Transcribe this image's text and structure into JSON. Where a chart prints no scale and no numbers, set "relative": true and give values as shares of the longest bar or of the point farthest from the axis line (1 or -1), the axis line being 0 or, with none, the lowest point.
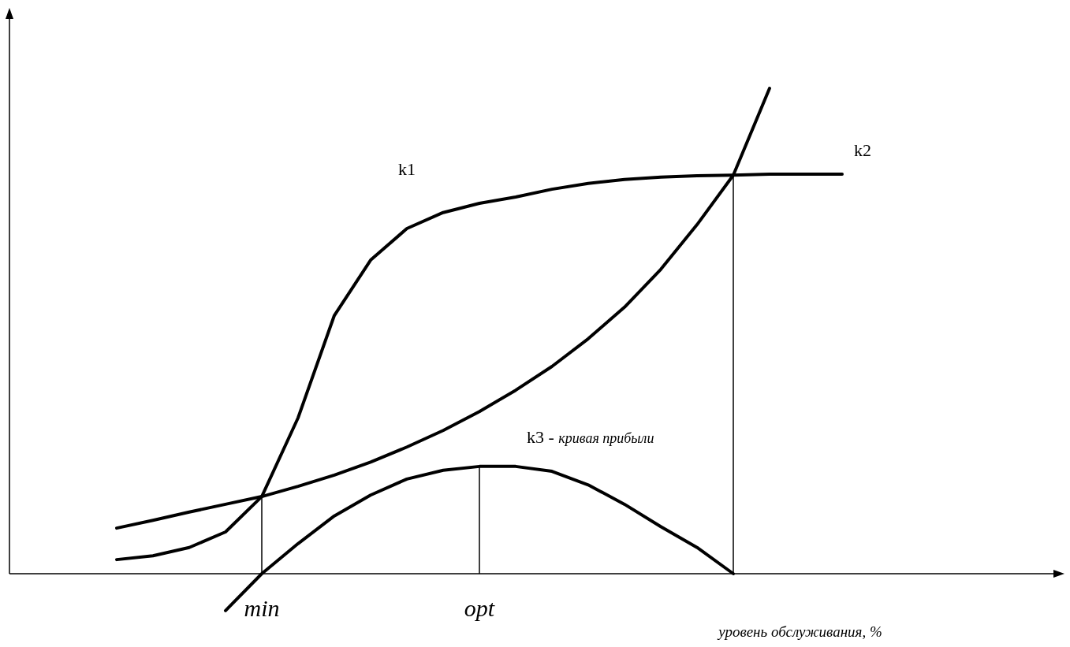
{
  "chart_data": {
    "type": "line",
    "relative": true,
    "xlabel": "уровень обслуживания, %",
    "categories": [
      null,
      null,
      null,
      null,
      null,
      null,
      null,
      "min",
      null,
      null,
      null,
      null,
      null,
      "opt",
      null,
      null,
      null,
      null,
      null,
      null,
      null,
      null,
      null,
      null,
      null,
      null,
      null,
      null,
      null,
      null
    ],
    "series": [
      {
        "color": "#000000",
        "values": [
          null,
          null,
          null,
          0.029,
          0.037,
          0.054,
          0.086,
          0.159,
          0.321,
          0.532,
          0.646,
          0.711,
          0.744,
          0.763,
          0.776,
          0.792,
          0.804,
          0.812,
          0.817,
          0.82,
          0.821,
          0.823,
          0.823,
          0.823,
          null,
          null,
          null,
          null,
          null,
          null
        ]
      },
      {
        "color": "#000000",
        "values": [
          null,
          null,
          null,
          0.094,
          0.11,
          0.127,
          0.143,
          0.159,
          0.18,
          0.203,
          0.23,
          0.261,
          0.295,
          0.334,
          0.378,
          0.427,
          0.484,
          0.549,
          0.627,
          0.719,
          0.821,
          1.0,
          null,
          null,
          null,
          null,
          null,
          null,
          null,
          null
        ]
      },
      {
        "color": "#000000",
        "values": [
          null,
          null,
          null,
          null,
          null,
          null,
          -0.076,
          0,
          0.062,
          0.119,
          0.162,
          0.195,
          0.213,
          0.221,
          0.221,
          0.211,
          0.183,
          0.143,
          0.097,
          0.054,
          0,
          null,
          null,
          null,
          null,
          null,
          null,
          null,
          null,
          null
        ]
      }
    ],
    "ref_lines": [
      {
        "axis": "x",
        "value": "min"
      },
      {
        "axis": "x",
        "value": "opt"
      }
    ],
    "annotations": [
      "k1",
      "k2",
      "k3 - кривая прибыли"
    ],
    "line_style": "solid"
  }
}
